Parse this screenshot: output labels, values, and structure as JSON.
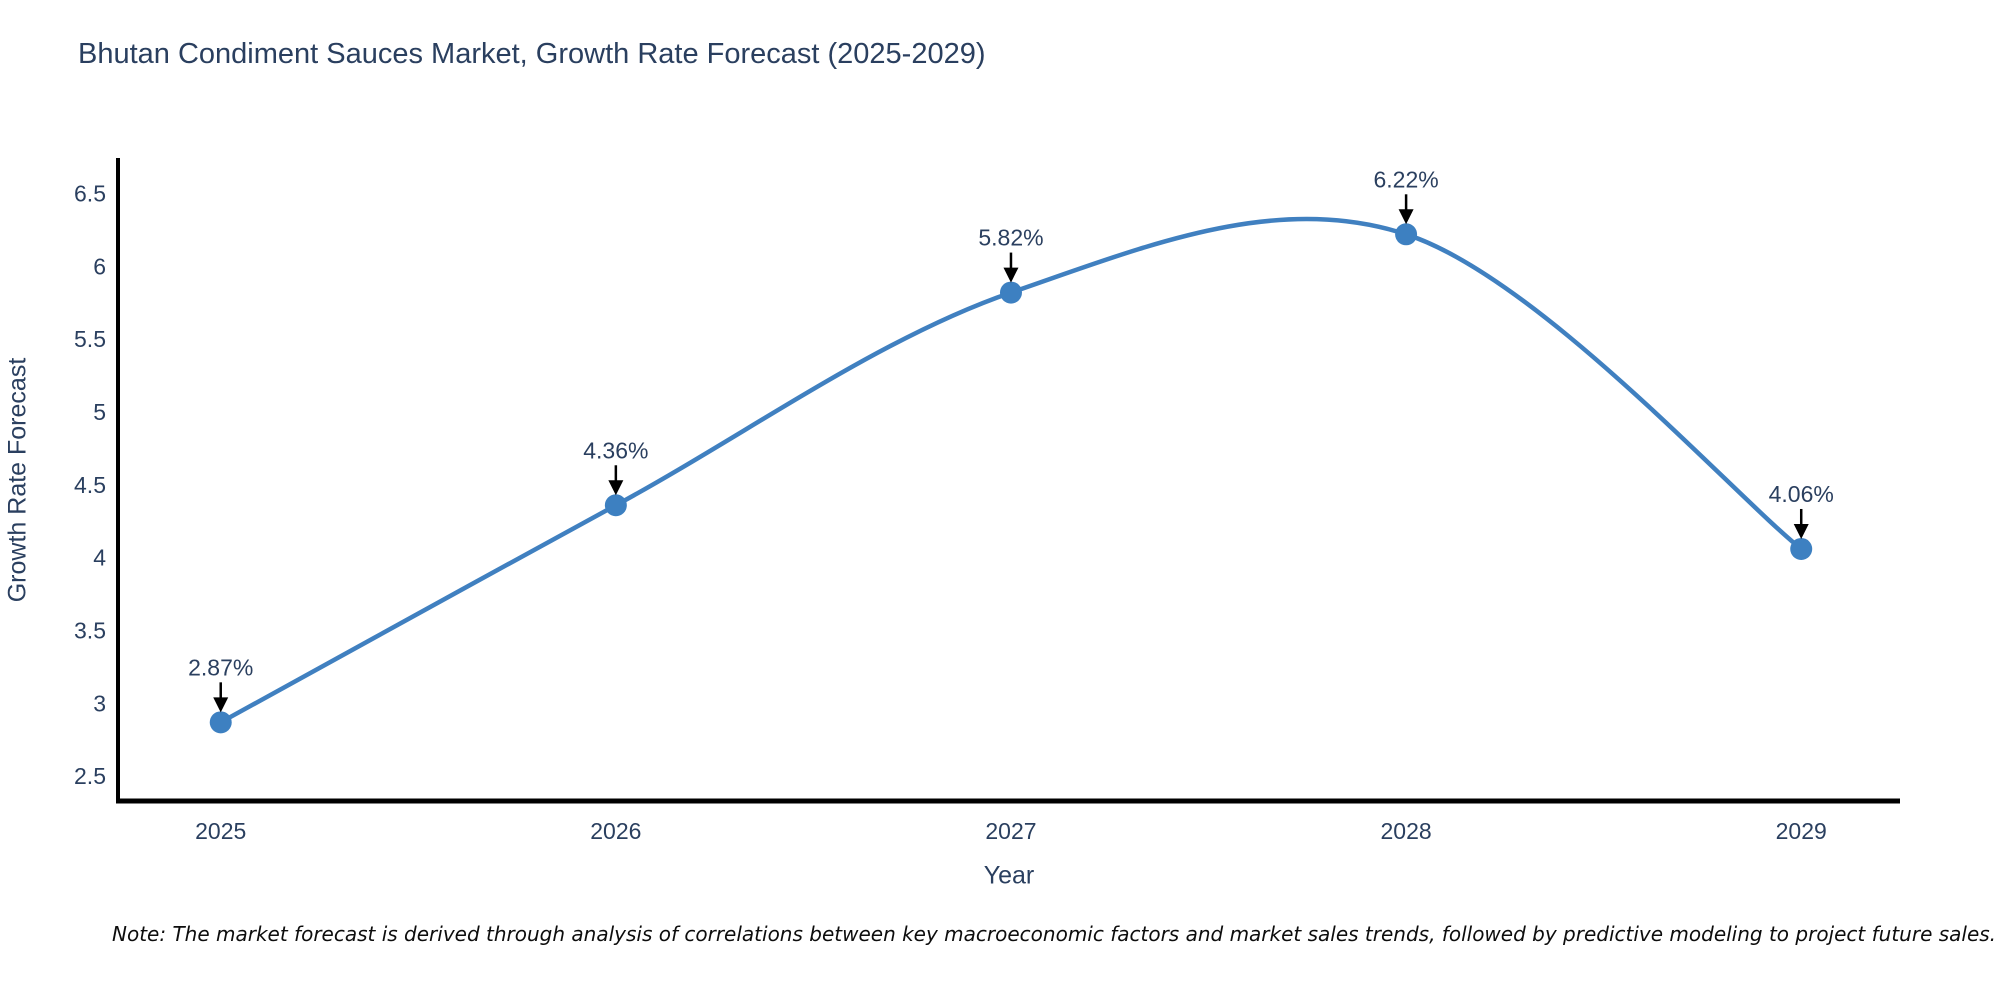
{
  "note": "Note: The market forecast is derived through analysis of correlations between key macroeconomic factors and market sales trends, followed by predictive modeling to project future sales.",
  "chart_data": {
    "type": "line",
    "title": "Bhutan Condiment Sauces Market, Growth Rate Forecast (2025-2029)",
    "xlabel": "Year",
    "ylabel": "Growth Rate Forecast",
    "x": [
      2025,
      2026,
      2027,
      2028,
      2029
    ],
    "y": [
      2.87,
      4.36,
      5.82,
      6.22,
      4.06
    ],
    "point_labels": [
      "2.87%",
      "4.36%",
      "5.82%",
      "6.22%",
      "4.06%"
    ],
    "x_tick_labels": [
      "2025",
      "2026",
      "2027",
      "2028",
      "2029"
    ],
    "x_tick_values": [
      2025,
      2026,
      2027,
      2028,
      2029
    ],
    "y_tick_labels": [
      "2.5",
      "3",
      "3.5",
      "4",
      "4.5",
      "5",
      "5.5",
      "6",
      "6.5"
    ],
    "y_tick_values": [
      2.5,
      3,
      3.5,
      4,
      4.5,
      5,
      5.5,
      6,
      6.5
    ],
    "xlim": [
      2024.74,
      2029.25
    ],
    "ylim": [
      2.33,
      6.73
    ],
    "line_shape": "spline",
    "grid": false,
    "legend": false,
    "colors": {
      "line": "#4080c0",
      "marker": "#3d80c1",
      "axis": "#000000",
      "text": "#2a3f5f",
      "annotation_text": "#2a3f5f",
      "arrow": "#000000",
      "note_text": "#0d0d0d",
      "background": "#ffffff"
    }
  }
}
